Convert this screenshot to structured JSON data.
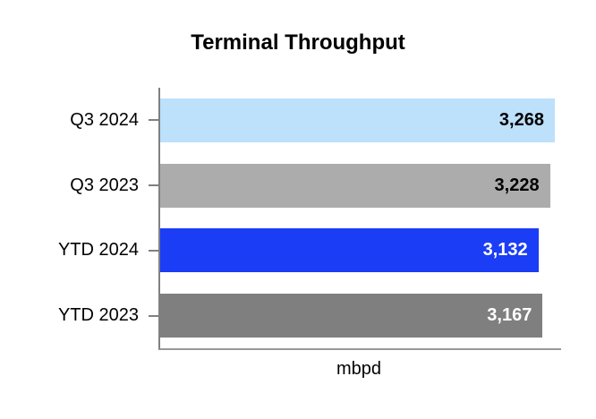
{
  "chart_data": {
    "type": "bar",
    "orientation": "horizontal",
    "title": "Terminal Throughput",
    "xlabel": "mbpd",
    "ylabel": "",
    "categories": [
      "Q3 2024",
      "Q3 2023",
      "YTD 2024",
      "YTD 2023"
    ],
    "values": [
      3268,
      3228,
      3132,
      3167
    ],
    "value_labels": [
      "3,268",
      "3,228",
      "3,132",
      "3,167"
    ],
    "bar_colors": [
      "#BDE0FB",
      "#ACACAC",
      "#1B3DF5",
      "#7F7F7F"
    ],
    "value_label_colors": [
      "#000000",
      "#000000",
      "#FFFFFF",
      "#FFFFFF"
    ],
    "xlim": [
      0,
      3320
    ],
    "grid": false,
    "legend": false,
    "axis_color": "#808080",
    "background_color": "#FFFFFF"
  }
}
